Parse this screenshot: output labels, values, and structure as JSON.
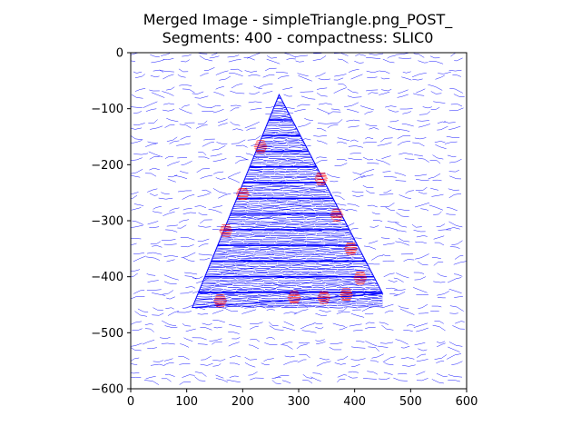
{
  "chart_data": {
    "type": "scatter",
    "title_line1": "Merged Image - simpleTriangle.png_POST_",
    "title_line2": "Segments: 400 - compactness: SLIC0",
    "xlabel": "",
    "ylabel": "",
    "xlim": [
      0,
      600
    ],
    "ylim": [
      -600,
      0
    ],
    "x_ticks": [
      0,
      100,
      200,
      300,
      400,
      500,
      600
    ],
    "y_ticks": [
      0,
      -100,
      -200,
      -300,
      -400,
      -500,
      -600
    ],
    "x_tick_labels": [
      "0",
      "100",
      "200",
      "300",
      "400",
      "500",
      "600"
    ],
    "y_tick_labels": [
      "0",
      "−100",
      "−200",
      "−300",
      "−400",
      "−500",
      "−600"
    ],
    "grid": false,
    "colors": {
      "background_lines": "#0000ff",
      "triangle_lines": "#0000ff",
      "highlight_lines": "#ff0000"
    },
    "triangle_vertices": [
      [
        265,
        -75
      ],
      [
        110,
        -455
      ],
      [
        450,
        -430
      ]
    ],
    "red_segments": [
      {
        "x": 232,
        "y": -168
      },
      {
        "x": 200,
        "y": -252
      },
      {
        "x": 170,
        "y": -318
      },
      {
        "x": 340,
        "y": -225
      },
      {
        "x": 368,
        "y": -290
      },
      {
        "x": 393,
        "y": -350
      },
      {
        "x": 410,
        "y": -402
      },
      {
        "x": 160,
        "y": -443
      },
      {
        "x": 292,
        "y": -437
      },
      {
        "x": 345,
        "y": -437
      },
      {
        "x": 385,
        "y": -432
      }
    ]
  }
}
